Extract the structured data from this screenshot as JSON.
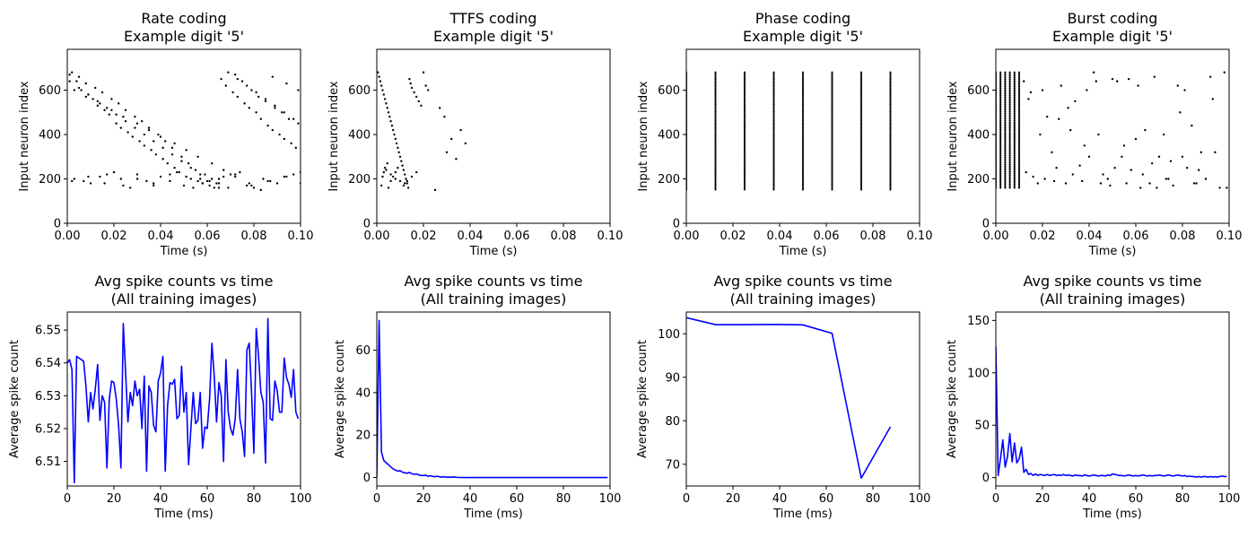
{
  "chart_data": [
    {
      "type": "scatter",
      "title": "Rate coding",
      "subtitle": "Example digit '5'",
      "xlabel": "Time (s)",
      "ylabel": "Input neuron index",
      "xlim": [
        0,
        0.1
      ],
      "ylim": [
        0,
        784
      ],
      "xticks": [
        "0.00",
        "0.02",
        "0.04",
        "0.06",
        "0.08",
        "0.10"
      ],
      "yticks": [
        "0",
        "200",
        "400",
        "600"
      ],
      "grid": false,
      "mark_color": "#000000",
      "x": [
        0.001,
        0.004,
        0.006,
        0.009,
        0.011,
        0.013,
        0.016,
        0.018,
        0.021,
        0.023,
        0.026,
        0.028,
        0.031,
        0.033,
        0.036,
        0.038,
        0.041,
        0.043,
        0.046,
        0.048,
        0.051,
        0.053,
        0.056,
        0.058,
        0.061,
        0.063,
        0.066,
        0.068,
        0.071,
        0.073,
        0.076,
        0.078,
        0.081,
        0.083,
        0.086,
        0.088,
        0.091,
        0.093,
        0.096,
        0.098,
        0.002,
        0.005,
        0.008,
        0.012,
        0.015,
        0.019,
        0.022,
        0.025,
        0.029,
        0.032,
        0.035,
        0.039,
        0.042,
        0.045,
        0.049,
        0.052,
        0.055,
        0.059,
        0.062,
        0.065,
        0.069,
        0.072,
        0.075,
        0.079,
        0.082,
        0.085,
        0.089,
        0.092,
        0.095,
        0.099,
        0.003,
        0.007,
        0.01,
        0.014,
        0.017,
        0.02,
        0.024,
        0.027,
        0.03,
        0.034,
        0.037,
        0.04,
        0.044,
        0.047,
        0.05,
        0.054,
        0.057,
        0.06,
        0.064,
        0.067,
        0.07,
        0.074,
        0.077,
        0.08,
        0.084,
        0.087,
        0.09,
        0.094,
        0.097,
        0.1,
        0.001,
        0.005,
        0.009,
        0.013,
        0.017,
        0.021,
        0.025,
        0.029,
        0.033,
        0.037,
        0.041,
        0.045,
        0.049,
        0.053,
        0.057,
        0.061,
        0.065,
        0.069,
        0.073,
        0.077,
        0.081,
        0.085,
        0.089,
        0.093,
        0.097,
        0.003,
        0.008,
        0.014,
        0.019,
        0.024,
        0.03,
        0.035,
        0.04,
        0.046,
        0.051,
        0.056,
        0.062,
        0.067,
        0.072,
        0.078,
        0.083,
        0.088,
        0.094,
        0.099,
        0.002,
        0.009,
        0.016,
        0.023,
        0.03,
        0.037,
        0.044,
        0.051,
        0.058,
        0.065,
        0.072,
        0.079,
        0.086,
        0.093,
        0.1
      ],
      "y": [
        670,
        640,
        600,
        580,
        560,
        530,
        510,
        490,
        450,
        430,
        410,
        390,
        370,
        350,
        330,
        310,
        290,
        270,
        250,
        230,
        210,
        200,
        190,
        180,
        170,
        160,
        650,
        620,
        590,
        570,
        540,
        520,
        500,
        470,
        440,
        420,
        400,
        380,
        360,
        340,
        680,
        660,
        630,
        610,
        590,
        560,
        540,
        510,
        480,
        460,
        430,
        400,
        370,
        340,
        300,
        270,
        240,
        220,
        200,
        180,
        160,
        670,
        640,
        600,
        570,
        550,
        520,
        500,
        470,
        450,
        200,
        190,
        180,
        210,
        220,
        230,
        170,
        160,
        200,
        190,
        180,
        210,
        220,
        230,
        170,
        160,
        200,
        190,
        180,
        210,
        220,
        230,
        170,
        160,
        200,
        190,
        180,
        210,
        220,
        230,
        640,
        610,
        580,
        550,
        520,
        490,
        460,
        430,
        400,
        370,
        340,
        310,
        280,
        250,
        220,
        190,
        160,
        680,
        650,
        620,
        590,
        560,
        530,
        500,
        470,
        600,
        570,
        540,
        510,
        480,
        450,
        420,
        390,
        360,
        330,
        300,
        270,
        240,
        210,
        180,
        150,
        660,
        630,
        600,
        190,
        210,
        180,
        200,
        220,
        170,
        190,
        210,
        180,
        200,
        220,
        170,
        190,
        210,
        180
      ]
    },
    {
      "type": "scatter",
      "title": "TTFS coding",
      "subtitle": "Example digit '5'",
      "xlabel": "Time (s)",
      "ylabel": "Input neuron index",
      "xlim": [
        0,
        0.1
      ],
      "ylim": [
        0,
        784
      ],
      "xticks": [
        "0.00",
        "0.02",
        "0.04",
        "0.06",
        "0.08",
        "0.10"
      ],
      "yticks": [
        "0",
        "200",
        "400",
        "600"
      ],
      "grid": false,
      "mark_color": "#000000",
      "x": [
        0.0005,
        0.001,
        0.0015,
        0.002,
        0.0025,
        0.003,
        0.0035,
        0.004,
        0.0045,
        0.005,
        0.0055,
        0.006,
        0.0065,
        0.007,
        0.0075,
        0.008,
        0.0085,
        0.009,
        0.0095,
        0.01,
        0.0105,
        0.011,
        0.0115,
        0.012,
        0.0125,
        0.013,
        0.0135,
        0.014,
        0.0145,
        0.015,
        0.016,
        0.017,
        0.018,
        0.019,
        0.02,
        0.021,
        0.022,
        0.025,
        0.027,
        0.029,
        0.03,
        0.032,
        0.034,
        0.036,
        0.038,
        0.004,
        0.006,
        0.008,
        0.01,
        0.012,
        0.002,
        0.0025,
        0.003,
        0.0035,
        0.0045,
        0.005,
        0.006,
        0.007,
        0.008,
        0.009,
        0.0115,
        0.013,
        0.015,
        0.017
      ],
      "y": [
        680,
        660,
        640,
        620,
        600,
        580,
        560,
        540,
        520,
        500,
        480,
        460,
        440,
        420,
        400,
        380,
        360,
        340,
        320,
        300,
        280,
        260,
        240,
        220,
        200,
        180,
        160,
        650,
        630,
        610,
        590,
        570,
        550,
        530,
        680,
        620,
        600,
        150,
        520,
        480,
        320,
        380,
        290,
        420,
        360,
        240,
        220,
        200,
        190,
        180,
        170,
        210,
        230,
        250,
        270,
        160,
        190,
        210,
        230,
        250,
        170,
        190,
        210,
        230
      ]
    },
    {
      "type": "scatter",
      "title": "Phase coding",
      "subtitle": "Example digit '5'",
      "xlabel": "Time (s)",
      "ylabel": "Input neuron index",
      "xlim": [
        0,
        0.1
      ],
      "ylim": [
        0,
        784
      ],
      "xticks": [
        "0.00",
        "0.02",
        "0.04",
        "0.06",
        "0.08",
        "0.10"
      ],
      "yticks": [
        "0",
        "200",
        "400",
        "600"
      ],
      "grid": false,
      "mark_color": "#000000",
      "columns": [
        0.0,
        0.0125,
        0.025,
        0.0375,
        0.05,
        0.0625,
        0.075,
        0.0875
      ],
      "column_y_range": [
        152,
        680
      ]
    },
    {
      "type": "scatter",
      "title": "Burst coding",
      "subtitle": "Example digit '5'",
      "xlabel": "Time (s)",
      "ylabel": "Input neuron index",
      "xlim": [
        0,
        0.1
      ],
      "ylim": [
        0,
        784
      ],
      "xticks": [
        "0.00",
        "0.02",
        "0.04",
        "0.06",
        "0.08",
        "0.10"
      ],
      "yticks": [
        "0",
        "200",
        "400",
        "600"
      ],
      "grid": false,
      "mark_color": "#000000",
      "columns": [
        0.0,
        0.002,
        0.004,
        0.006,
        0.008,
        0.01
      ],
      "column_y_range": [
        160,
        680
      ],
      "x": [
        0.012,
        0.014,
        0.016,
        0.018,
        0.02,
        0.022,
        0.024,
        0.026,
        0.028,
        0.03,
        0.032,
        0.034,
        0.036,
        0.038,
        0.04,
        0.042,
        0.044,
        0.046,
        0.048,
        0.05,
        0.052,
        0.054,
        0.056,
        0.058,
        0.06,
        0.062,
        0.064,
        0.066,
        0.068,
        0.07,
        0.072,
        0.074,
        0.076,
        0.078,
        0.08,
        0.082,
        0.084,
        0.086,
        0.088,
        0.09,
        0.092,
        0.094,
        0.096,
        0.098,
        0.015,
        0.021,
        0.027,
        0.033,
        0.039,
        0.045,
        0.051,
        0.057,
        0.063,
        0.069,
        0.075,
        0.081,
        0.087,
        0.093,
        0.099,
        0.013,
        0.019,
        0.025,
        0.031,
        0.037,
        0.043,
        0.049,
        0.055,
        0.061,
        0.067,
        0.073,
        0.079,
        0.085
      ],
      "y": [
        640,
        560,
        210,
        180,
        600,
        480,
        320,
        250,
        620,
        180,
        420,
        550,
        260,
        350,
        300,
        680,
        400,
        220,
        200,
        650,
        640,
        300,
        180,
        240,
        380,
        160,
        420,
        180,
        660,
        300,
        400,
        200,
        170,
        620,
        300,
        250,
        440,
        180,
        320,
        200,
        660,
        320,
        160,
        680,
        590,
        200,
        470,
        220,
        600,
        180,
        250,
        650,
        220,
        160,
        280,
        600,
        240,
        560,
        160,
        230,
        400,
        190,
        520,
        190,
        640,
        170,
        350,
        620,
        270,
        200,
        500,
        180
      ]
    },
    {
      "type": "line",
      "title": "Avg spike counts vs time",
      "subtitle": "(All training images)",
      "xlabel": "Time (ms)",
      "ylabel": "Average spike count",
      "xlim": [
        0,
        100
      ],
      "ylim": [
        6.5025,
        6.5555
      ],
      "xticks": [
        "0",
        "20",
        "40",
        "60",
        "80",
        "100"
      ],
      "yticks": [
        "6.51",
        "6.52",
        "6.53",
        "6.54",
        "6.55"
      ],
      "yticks_values": [
        6.51,
        6.52,
        6.53,
        6.54,
        6.55
      ],
      "grid": false,
      "color": "#0000ff",
      "x": [
        0,
        1,
        2,
        3,
        4,
        5,
        6,
        7,
        8,
        9,
        10,
        11,
        12,
        13,
        14,
        15,
        16,
        17,
        18,
        19,
        20,
        21,
        22,
        23,
        24,
        25,
        26,
        27,
        28,
        29,
        30,
        31,
        32,
        33,
        34,
        35,
        36,
        37,
        38,
        39,
        40,
        41,
        42,
        43,
        44,
        45,
        46,
        47,
        48,
        49,
        50,
        51,
        52,
        53,
        54,
        55,
        56,
        57,
        58,
        59,
        60,
        61,
        62,
        63,
        64,
        65,
        66,
        67,
        68,
        69,
        70,
        71,
        72,
        73,
        74,
        75,
        76,
        77,
        78,
        79,
        80,
        81,
        82,
        83,
        84,
        85,
        86,
        87,
        88,
        89,
        90,
        91,
        92,
        93,
        94,
        95,
        96,
        97,
        98,
        99
      ],
      "values": [
        6.54,
        6.541,
        6.538,
        6.5035,
        6.542,
        6.5415,
        6.541,
        6.5405,
        6.533,
        6.522,
        6.531,
        6.526,
        6.532,
        6.5395,
        6.5225,
        6.53,
        6.528,
        6.508,
        6.529,
        6.5345,
        6.534,
        6.529,
        6.521,
        6.508,
        6.552,
        6.537,
        6.522,
        6.531,
        6.527,
        6.5345,
        6.53,
        6.532,
        6.52,
        6.536,
        6.507,
        6.533,
        6.531,
        6.521,
        6.519,
        6.5345,
        6.537,
        6.542,
        6.507,
        6.527,
        6.534,
        6.5335,
        6.535,
        6.523,
        6.524,
        6.539,
        6.525,
        6.531,
        6.509,
        6.52,
        6.531,
        6.5215,
        6.5225,
        6.531,
        6.514,
        6.5205,
        6.52,
        6.529,
        6.546,
        6.536,
        6.522,
        6.534,
        6.53,
        6.51,
        6.541,
        6.525,
        6.52,
        6.518,
        6.523,
        6.538,
        6.523,
        6.519,
        6.5115,
        6.544,
        6.546,
        6.531,
        6.5125,
        6.5505,
        6.542,
        6.531,
        6.528,
        6.5095,
        6.5535,
        6.523,
        6.5225,
        6.5345,
        6.5315,
        6.525,
        6.525,
        6.5415,
        6.5355,
        6.5335,
        6.5295,
        6.538,
        6.525,
        6.523
      ]
    },
    {
      "type": "line",
      "title": "Avg spike counts vs time",
      "subtitle": "(All training images)",
      "xlabel": "Time (ms)",
      "ylabel": "Average spike count",
      "xlim": [
        0,
        100
      ],
      "ylim": [
        -4,
        78
      ],
      "xticks": [
        "0",
        "20",
        "40",
        "60",
        "80",
        "100"
      ],
      "yticks": [
        "0",
        "20",
        "40",
        "60"
      ],
      "yticks_values": [
        0,
        20,
        40,
        60
      ],
      "grid": false,
      "color": "#0000ff",
      "x": [
        0,
        1,
        2,
        3,
        4,
        5,
        6,
        7,
        8,
        9,
        10,
        11,
        12,
        13,
        14,
        15,
        16,
        17,
        18,
        19,
        20,
        21,
        22,
        23,
        24,
        25,
        26,
        27,
        28,
        29,
        30,
        31,
        32,
        33,
        34,
        35,
        40,
        50,
        60,
        70,
        80,
        90,
        99
      ],
      "values": [
        0,
        74,
        12,
        8,
        7,
        6,
        5,
        4,
        3.5,
        3,
        3.2,
        2.5,
        2.2,
        2,
        2.4,
        1.8,
        1.5,
        1.7,
        1.2,
        1,
        0.9,
        1.1,
        0.6,
        0.8,
        0.5,
        0.4,
        0.6,
        0.3,
        0.2,
        0.4,
        0.1,
        0.2,
        0.1,
        0.3,
        0.1,
        0.05,
        0,
        0,
        0,
        0,
        0,
        0,
        0
      ]
    },
    {
      "type": "line",
      "title": "Avg spike counts vs time",
      "subtitle": "(All training images)",
      "xlabel": "Time (ms)",
      "ylabel": "Average spike count",
      "xlim": [
        0,
        100
      ],
      "ylim": [
        65,
        105
      ],
      "xticks": [
        "0",
        "20",
        "40",
        "60",
        "80",
        "100"
      ],
      "yticks": [
        "70",
        "80",
        "90",
        "100"
      ],
      "yticks_values": [
        70,
        80,
        90,
        100
      ],
      "grid": false,
      "color": "#0000ff",
      "x": [
        0,
        12.5,
        25,
        37.5,
        50,
        62.5,
        75,
        87.5
      ],
      "values": [
        103.7,
        102.1,
        102.1,
        102.15,
        102.05,
        100.1,
        66.8,
        78.6
      ]
    },
    {
      "type": "line",
      "title": "Avg spike counts vs time",
      "subtitle": "(All training images)",
      "xlabel": "Time (ms)",
      "ylabel": "Average spike count",
      "xlim": [
        0,
        100
      ],
      "ylim": [
        -8,
        158
      ],
      "xticks": [
        "0",
        "20",
        "40",
        "60",
        "80",
        "100"
      ],
      "yticks": [
        "0",
        "50",
        "100",
        "150"
      ],
      "yticks_values": [
        0,
        50,
        100,
        150
      ],
      "grid": false,
      "color": "#0000ff",
      "x": [
        0,
        1,
        2,
        3,
        4,
        5,
        6,
        7,
        8,
        9,
        10,
        11,
        12,
        13,
        14,
        15,
        16,
        17,
        18,
        19,
        20,
        21,
        22,
        23,
        24,
        25,
        26,
        27,
        28,
        29,
        30,
        31,
        32,
        33,
        34,
        35,
        36,
        37,
        38,
        39,
        40,
        41,
        42,
        43,
        44,
        45,
        46,
        47,
        48,
        49,
        50,
        51,
        52,
        53,
        54,
        55,
        56,
        57,
        58,
        59,
        60,
        61,
        62,
        63,
        64,
        65,
        66,
        67,
        68,
        69,
        70,
        71,
        72,
        73,
        74,
        75,
        76,
        77,
        78,
        79,
        80,
        81,
        82,
        83,
        84,
        85,
        86,
        87,
        88,
        89,
        90,
        91,
        92,
        93,
        94,
        95,
        96,
        97,
        98,
        99
      ],
      "values": [
        125,
        2,
        18,
        36,
        10,
        20,
        42,
        15,
        33,
        14,
        18,
        29,
        5,
        8,
        3,
        4,
        2,
        3.5,
        2,
        3,
        2.5,
        2,
        3,
        2,
        2.5,
        3,
        2,
        2.5,
        2,
        3,
        2,
        2.5,
        2,
        1.5,
        2.5,
        2,
        2,
        1.5,
        2.5,
        2,
        1.5,
        2,
        2.5,
        2,
        1.5,
        2,
        2,
        1.5,
        2.5,
        2,
        3.5,
        3,
        2.5,
        2,
        2,
        1.5,
        2,
        2.5,
        2,
        1.5,
        2,
        1.5,
        2,
        2.5,
        2,
        1.5,
        2,
        1.5,
        2,
        2,
        2.5,
        2,
        1.5,
        2,
        2.5,
        2,
        1.5,
        2,
        2.5,
        2,
        1.5,
        2,
        1,
        1.5,
        1,
        1,
        0.5,
        1,
        0.5,
        1,
        1,
        0.5,
        1,
        0.5,
        1,
        0.5,
        1,
        1.5,
        1,
        1
      ]
    }
  ]
}
